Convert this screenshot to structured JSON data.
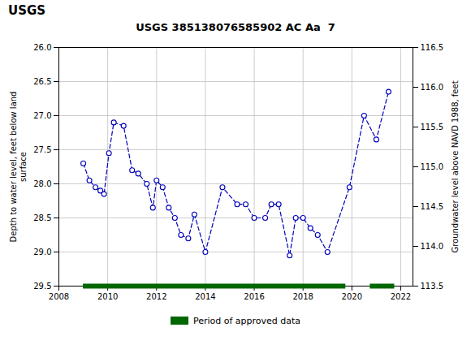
{
  "chart_data": {
    "type": "line",
    "title": "USGS 385138076585902 AC Aa  7",
    "annotations": [
      "USGS"
    ],
    "ylabel": "Depth to water level, feet below land\nsurface",
    "y2label": "Groundwater level above NAVD 1988, feet",
    "xlim": [
      2008,
      2022.5
    ],
    "xticks": [
      2008,
      2010,
      2012,
      2014,
      2016,
      2018,
      2020,
      2022
    ],
    "ylim": [
      29.5,
      26.0
    ],
    "yticks": [
      {
        "value": 26.0,
        "label": "26.0"
      },
      26.5,
      {
        "value": 27.0,
        "label": "27.0"
      },
      27.5,
      {
        "value": 28.0,
        "label": "28.0"
      },
      28.5,
      {
        "value": 29.0,
        "label": "29.0"
      },
      29.5
    ],
    "y2lim": [
      113.5,
      116.5
    ],
    "y2ticks": [
      113.5,
      {
        "value": 114.0,
        "label": "114.0"
      },
      114.5,
      {
        "value": 115.0,
        "label": "115.0"
      },
      115.5,
      {
        "value": 116.0,
        "label": "116.0"
      },
      116.5
    ],
    "grid": true,
    "legend": "bottom",
    "x": [
      2009.0,
      2009.25,
      2009.5,
      2009.7,
      2009.85,
      2010.05,
      2010.25,
      2010.65,
      2011.0,
      2011.25,
      2011.6,
      2011.85,
      2012.0,
      2012.25,
      2012.5,
      2012.75,
      2013.0,
      2013.3,
      2013.55,
      2014.0,
      2014.7,
      2015.3,
      2015.65,
      2016.0,
      2016.45,
      2016.7,
      2017.0,
      2017.45,
      2017.7,
      2018.0,
      2018.3,
      2018.6,
      2019.0,
      2019.9,
      2020.5,
      2021.0,
      2021.5
    ],
    "series": [
      {
        "color": "#0000bb",
        "marker": "open circle",
        "line_style": "dashed",
        "values": [
          27.7,
          27.95,
          28.05,
          28.1,
          28.15,
          27.55,
          27.1,
          27.15,
          27.8,
          27.85,
          28.0,
          28.35,
          27.95,
          28.05,
          28.35,
          28.5,
          28.75,
          28.8,
          28.45,
          29.0,
          28.05,
          28.3,
          28.3,
          28.5,
          28.5,
          28.3,
          28.3,
          29.05,
          28.5,
          28.5,
          28.65,
          28.75,
          29.0,
          28.05,
          27.0,
          27.35,
          26.65
        ]
      }
    ],
    "periods": [
      {
        "name": "Period of approved data",
        "color": "#006600",
        "ranges": [
          [
            2009.0,
            2019.75
          ],
          [
            2020.75,
            2021.75
          ]
        ]
      }
    ]
  }
}
